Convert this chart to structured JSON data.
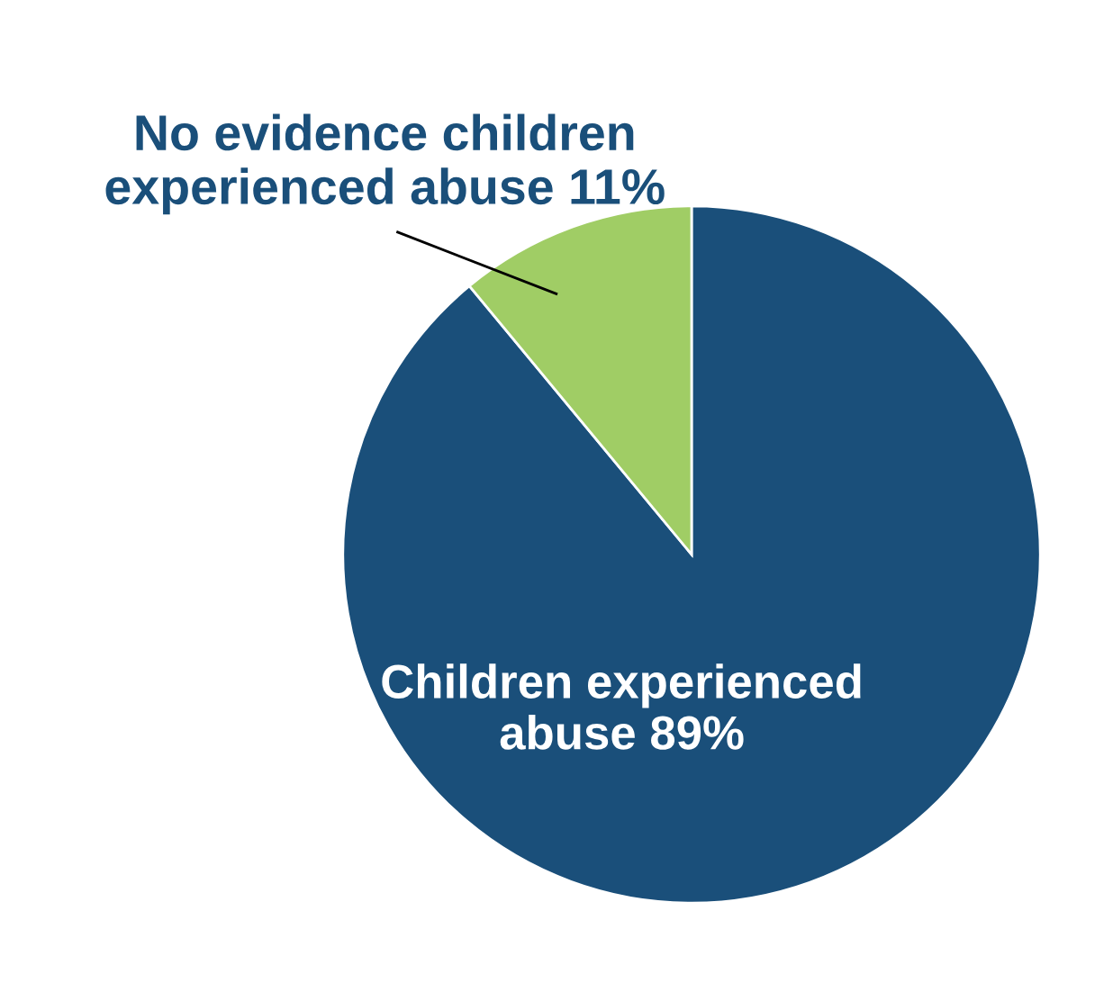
{
  "chart_data": {
    "type": "pie",
    "categories": [
      "Children experienced\nabuse",
      "No evidence children\nexperienced abuse"
    ],
    "values": [
      89,
      11
    ],
    "value_labels": [
      "89%",
      "11%"
    ],
    "colors": [
      "#1a4f7a",
      "#a0cd65"
    ],
    "legend": false
  }
}
